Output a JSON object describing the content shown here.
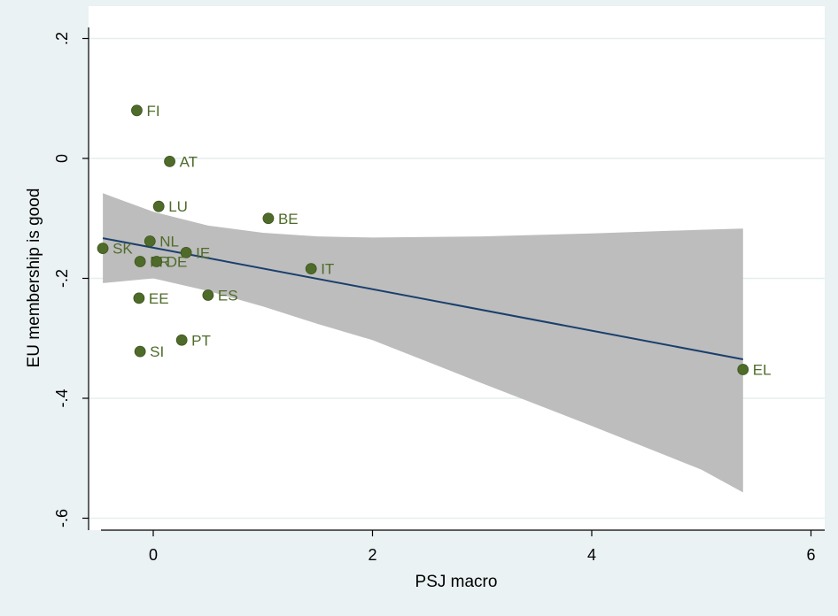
{
  "chart_data": {
    "type": "scatter",
    "xlabel": "PSJ macro",
    "ylabel": "EU membership is good",
    "xlim": [
      -0.6,
      6.1
    ],
    "ylim": [
      -0.62,
      0.22
    ],
    "x_ticks": [
      0,
      2,
      4,
      6
    ],
    "x_tick_labels": [
      "0",
      "2",
      "4",
      "6"
    ],
    "y_ticks": [
      0.2,
      0,
      -0.2,
      -0.4,
      -0.6
    ],
    "y_tick_labels": [
      ".2",
      "0",
      "-.2",
      "-.4",
      "-.6"
    ],
    "grid": true,
    "colors": {
      "background": "#eaf2f3",
      "plot_area": "#ffffff",
      "gridline": "#e5eeee",
      "point": "#4e6b29",
      "point_label": "#4e6b29",
      "fit_line": "#1a3f6d",
      "ci_band": "#bdbdbd"
    },
    "points": [
      {
        "label": "FI",
        "x": -0.15,
        "y": 0.08
      },
      {
        "label": "AT",
        "x": 0.15,
        "y": -0.005
      },
      {
        "label": "LU",
        "x": 0.05,
        "y": -0.08
      },
      {
        "label": "BE",
        "x": 1.05,
        "y": -0.1
      },
      {
        "label": "NL",
        "x": -0.03,
        "y": -0.138
      },
      {
        "label": "SK",
        "x": -0.46,
        "y": -0.15
      },
      {
        "label": "IE",
        "x": 0.3,
        "y": -0.157
      },
      {
        "label": "FR",
        "x": -0.12,
        "y": -0.172
      },
      {
        "label": "DE",
        "x": 0.03,
        "y": -0.172
      },
      {
        "label": "IT",
        "x": 1.44,
        "y": -0.184
      },
      {
        "label": "ES",
        "x": 0.5,
        "y": -0.228
      },
      {
        "label": "EE",
        "x": -0.13,
        "y": -0.233
      },
      {
        "label": "PT",
        "x": 0.26,
        "y": -0.303
      },
      {
        "label": "SI",
        "x": -0.12,
        "y": -0.322
      },
      {
        "label": "EL",
        "x": 5.38,
        "y": -0.352
      }
    ],
    "fit_line": {
      "x": [
        -0.46,
        5.38
      ],
      "y": [
        -0.133,
        -0.335
      ]
    },
    "confidence_band": {
      "x": [
        -0.46,
        0.0,
        0.5,
        1.0,
        1.5,
        2.0,
        3.0,
        4.0,
        5.0,
        5.38
      ],
      "upper": [
        -0.058,
        -0.089,
        -0.112,
        -0.124,
        -0.13,
        -0.132,
        -0.13,
        -0.125,
        -0.119,
        -0.117
      ],
      "lower": [
        -0.208,
        -0.2,
        -0.221,
        -0.247,
        -0.276,
        -0.303,
        -0.375,
        -0.446,
        -0.519,
        -0.557
      ]
    }
  }
}
